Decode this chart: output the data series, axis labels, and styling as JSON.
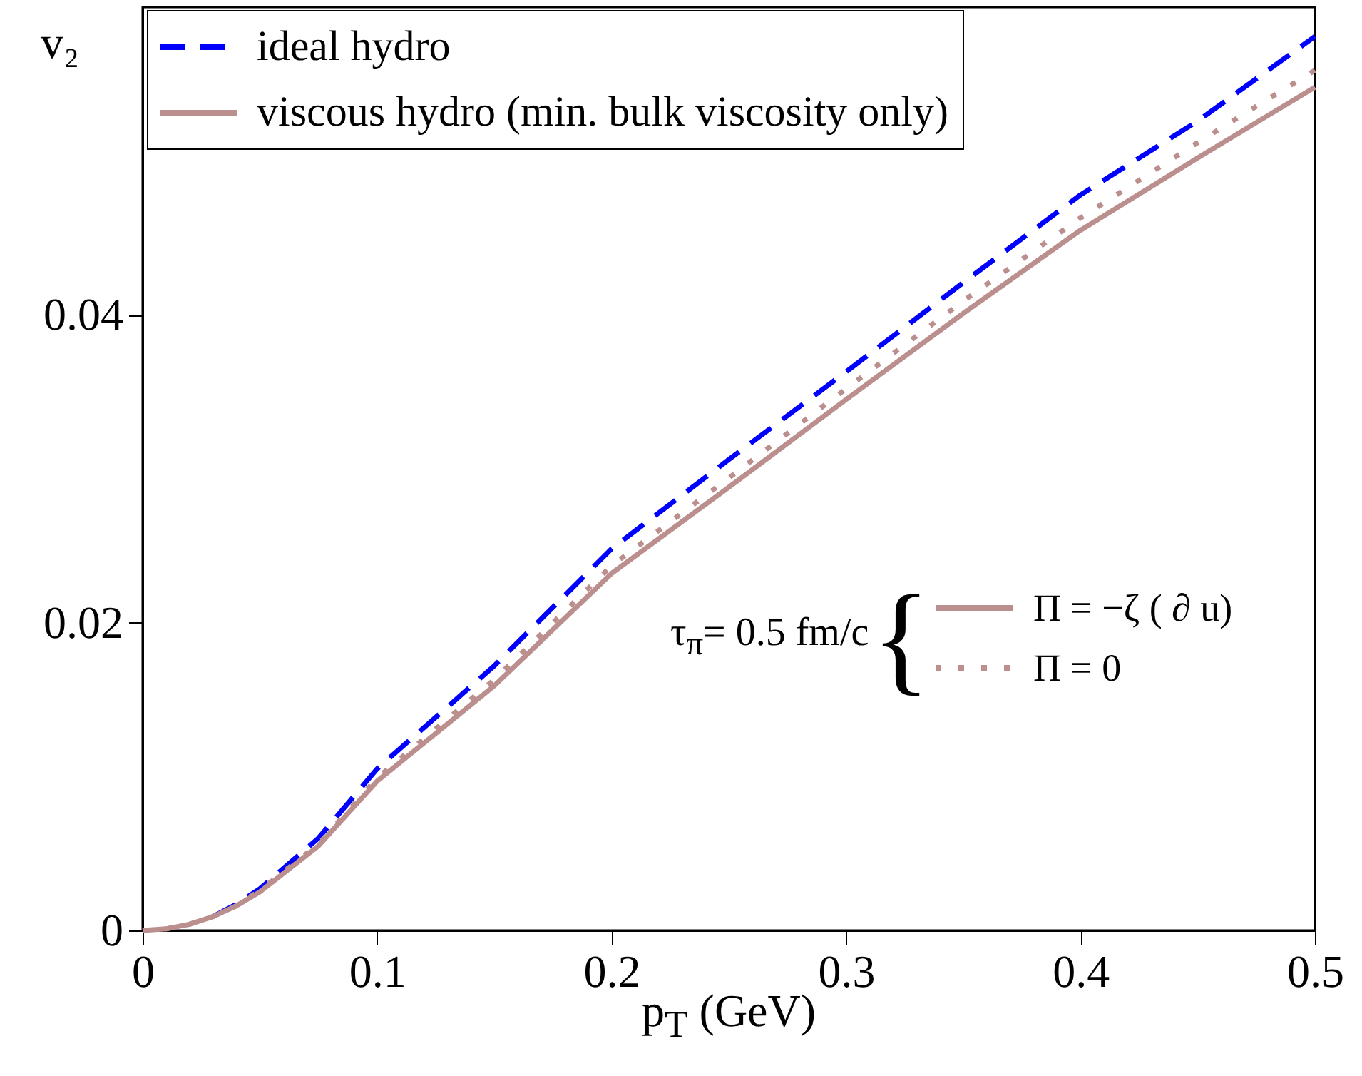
{
  "chart_data": {
    "type": "line",
    "xlabel": "p$_{T}$ (GeV)",
    "ylabel": "v₂",
    "x": [
      0,
      0.01,
      0.02,
      0.03,
      0.04,
      0.05,
      0.075,
      0.1,
      0.15,
      0.2,
      0.25,
      0.3,
      0.35,
      0.4,
      0.45,
      0.5
    ],
    "series": [
      {
        "name": "ideal hydro",
        "color": "#0000ff",
        "line_style": "dashed",
        "values": [
          null,
          null,
          null,
          0.0009,
          0.0017,
          0.0027,
          0.006,
          0.0105,
          0.0172,
          0.0248,
          0.0306,
          0.0363,
          0.0421,
          0.0478,
          0.0526,
          0.0581
        ]
      },
      {
        "name": "viscous hydro (min. bulk viscosity only)",
        "color": "#bc8f8f",
        "line_style": "solid",
        "values": [
          0,
          0.0001,
          0.0004,
          0.0009,
          0.0016,
          0.0025,
          0.0055,
          0.0097,
          0.0159,
          0.0232,
          0.0288,
          0.0345,
          0.0401,
          0.0455,
          0.0502,
          0.0548
        ]
      },
      {
        "name": "Π = 0",
        "color": "#bc8f8f",
        "line_style": "dotted",
        "values": [
          0,
          0.0001,
          0.0004,
          0.0009,
          0.0016,
          0.0026,
          0.0056,
          0.0099,
          0.0163,
          0.0237,
          0.0294,
          0.0352,
          0.0409,
          0.0463,
          0.0512,
          0.0559
        ]
      }
    ],
    "annotations": [
      "τ$_{π}$= 0.5 fm/c",
      "{",
      "Π = −ζ ( ∂ u)"
    ],
    "xlim": [
      0,
      0.5
    ],
    "ylim": [
      0,
      0.06
    ],
    "xticks": [
      0,
      0.1,
      0.2,
      0.3,
      0.4,
      0.5
    ],
    "yticks": [
      0,
      0.02,
      0.04
    ],
    "legend": "top left"
  }
}
